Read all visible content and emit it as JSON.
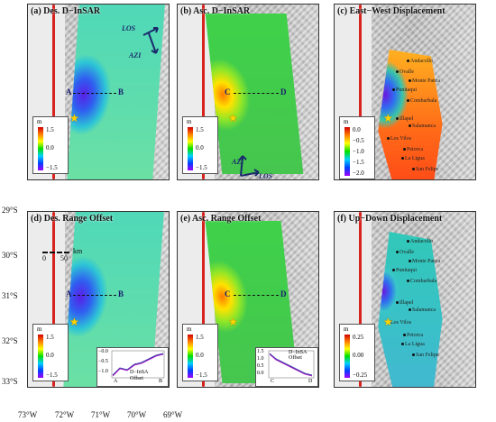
{
  "panels": [
    {
      "id": "a",
      "title": "(a) Des. D−InSAR",
      "profile": [
        "A",
        "B"
      ],
      "arrows": [
        "LOS",
        "AZI"
      ],
      "colorbar": {
        "unit": "m",
        "ticks": [
          "1.5",
          "0.0",
          "−1.5"
        ]
      }
    },
    {
      "id": "b",
      "title": "(b) Asc. D−InSAR",
      "profile": [
        "C",
        "D"
      ],
      "arrows": [
        "AZI",
        "LOS"
      ],
      "colorbar": {
        "unit": "m",
        "ticks": [
          "1.5",
          "0.0",
          "−1.5"
        ]
      }
    },
    {
      "id": "c",
      "title": "(c) East−West Displacement",
      "colorbar": {
        "unit": "m",
        "ticks": [
          "0.0",
          "−0.5",
          "−1.0",
          "−1.5",
          "−2.0"
        ]
      }
    },
    {
      "id": "d",
      "title": "(d) Des. Range Offset",
      "profile": [
        "A",
        "B"
      ],
      "colorbar": {
        "unit": "m",
        "ticks": [
          "1.5",
          "0.0",
          "−1.5"
        ]
      },
      "inset": {
        "ticks": [
          "−0.0",
          "−0.5",
          "−1.0"
        ],
        "ends": [
          "A",
          "B"
        ],
        "legend": [
          "D−InSA",
          "Offset"
        ]
      }
    },
    {
      "id": "e",
      "title": "(e) Asc. Range Offset",
      "profile": [
        "C",
        "D"
      ],
      "colorbar": {
        "unit": "m",
        "ticks": [
          "1.5",
          "0.0",
          "−1.5"
        ]
      },
      "inset": {
        "ticks": [
          "1.5",
          "1.0",
          "0.5",
          "0.0"
        ],
        "ends": [
          "C",
          "D"
        ],
        "legend": [
          "D−InSA",
          "Offset"
        ]
      }
    },
    {
      "id": "f",
      "title": "(f) Up−Down Displacement",
      "colorbar": {
        "unit": "m",
        "ticks": [
          "0.25",
          "0.00",
          "−0.25"
        ]
      }
    }
  ],
  "towns": [
    "Andacollo",
    "Ovalle",
    "Monte Patria",
    "Punitaqui",
    "Combarbala",
    "Illapel",
    "Salamanca",
    "Los Vilos",
    "Petorca",
    "La Ligua",
    "San Felipe"
  ],
  "lat_labels": [
    "29°S",
    "30°S",
    "31°S",
    "32°S",
    "33°S"
  ],
  "lon_labels": [
    "73°W",
    "72°W",
    "71°W",
    "70°W",
    "69°W"
  ],
  "scalebar": {
    "ticks": [
      "0",
      "50"
    ],
    "unit": "km"
  },
  "colors": {
    "coastline": "#d8221d",
    "star": "#ffd400"
  }
}
